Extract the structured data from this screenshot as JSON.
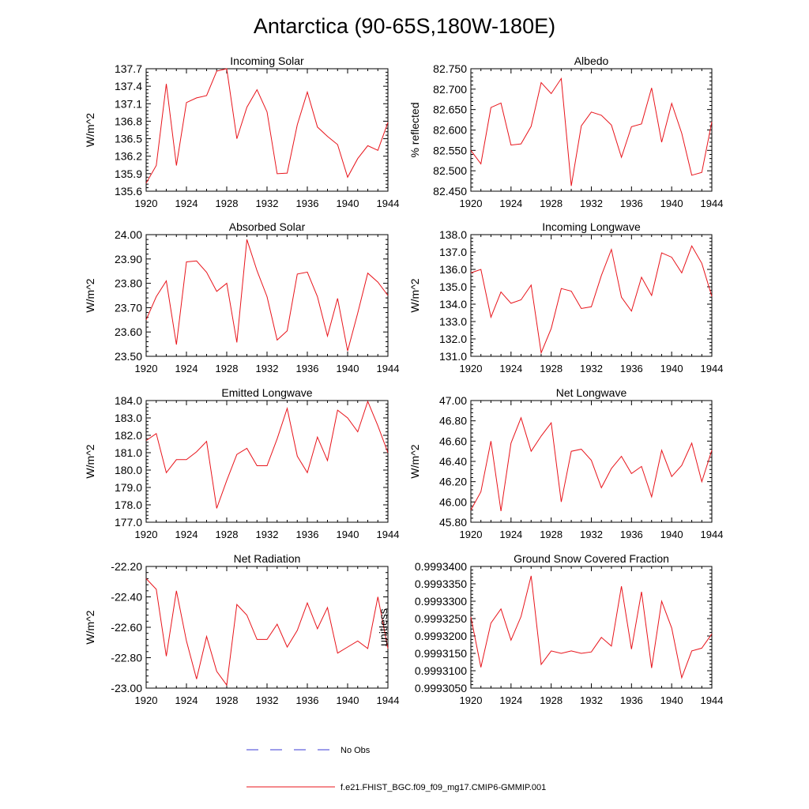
{
  "figure": {
    "title": "Antarctica (90-65S,180W-180E)",
    "legend": {
      "obs_label": "No Obs",
      "model_label": "f.e21.FHIST_BGC.f09_f09_mg17.CMIP6-GMMIP.001",
      "obs_color": "#3b3bd6",
      "model_color": "#e8141b"
    }
  },
  "chart_data": [
    {
      "type": "line",
      "title": "Incoming Solar",
      "ylabel": "W/m^2",
      "x": [
        1920,
        1921,
        1922,
        1923,
        1924,
        1925,
        1926,
        1927,
        1928,
        1929,
        1930,
        1931,
        1932,
        1933,
        1934,
        1935,
        1936,
        1937,
        1938,
        1939,
        1940,
        1941,
        1942,
        1943,
        1944
      ],
      "values": [
        135.74,
        136.04,
        137.44,
        136.04,
        137.12,
        137.2,
        137.24,
        137.66,
        137.7,
        136.5,
        137.04,
        137.34,
        136.96,
        135.9,
        135.91,
        136.74,
        137.3,
        136.7,
        136.54,
        136.4,
        135.84,
        136.16,
        136.38,
        136.3,
        136.78
      ],
      "xlim": [
        1920,
        1944
      ],
      "ylim": [
        135.6,
        137.7
      ],
      "xticks": [
        1920,
        1924,
        1928,
        1932,
        1936,
        1940,
        1944
      ],
      "xtick_labels": [
        "1920",
        "1924",
        "1928",
        "1932",
        "1936",
        "1940",
        "1944"
      ],
      "yticks": [
        135.6,
        135.9,
        136.2,
        136.5,
        136.8,
        137.1,
        137.4,
        137.7
      ],
      "ytick_labels": [
        "135.6",
        "135.9",
        "136.2",
        "136.5",
        "136.8",
        "137.1",
        "137.4",
        "137.7"
      ]
    },
    {
      "type": "line",
      "title": "Albedo",
      "ylabel": "% reflected",
      "x": [
        1920,
        1921,
        1922,
        1923,
        1924,
        1925,
        1926,
        1927,
        1928,
        1929,
        1930,
        1931,
        1932,
        1933,
        1934,
        1935,
        1936,
        1937,
        1938,
        1939,
        1940,
        1941,
        1942,
        1943,
        1944
      ],
      "values": [
        82.55,
        82.517,
        82.655,
        82.666,
        82.563,
        82.566,
        82.609,
        82.716,
        82.689,
        82.726,
        82.463,
        82.61,
        82.644,
        82.636,
        82.612,
        82.533,
        82.608,
        82.615,
        82.703,
        82.57,
        82.665,
        82.592,
        82.489,
        82.496,
        82.62
      ],
      "xlim": [
        1920,
        1944
      ],
      "ylim": [
        82.45,
        82.75
      ],
      "xticks": [
        1920,
        1924,
        1928,
        1932,
        1936,
        1940,
        1944
      ],
      "xtick_labels": [
        "1920",
        "1924",
        "1928",
        "1932",
        "1936",
        "1940",
        "1944"
      ],
      "yticks": [
        82.45,
        82.5,
        82.55,
        82.6,
        82.65,
        82.7,
        82.75
      ],
      "ytick_labels": [
        "82.450",
        "82.500",
        "82.550",
        "82.600",
        "82.650",
        "82.700",
        "82.750"
      ]
    },
    {
      "type": "line",
      "title": "Absorbed Solar",
      "ylabel": "W/m^2",
      "x": [
        1920,
        1921,
        1922,
        1923,
        1924,
        1925,
        1926,
        1927,
        1928,
        1929,
        1930,
        1931,
        1932,
        1933,
        1934,
        1935,
        1936,
        1937,
        1938,
        1939,
        1940,
        1941,
        1942,
        1943,
        1944
      ],
      "values": [
        23.65,
        23.745,
        23.81,
        23.548,
        23.888,
        23.892,
        23.845,
        23.767,
        23.8,
        23.557,
        23.98,
        23.852,
        23.745,
        23.567,
        23.605,
        23.838,
        23.846,
        23.745,
        23.583,
        23.738,
        23.522,
        23.678,
        23.842,
        23.805,
        23.75
      ],
      "xlim": [
        1920,
        1944
      ],
      "ylim": [
        23.5,
        24.0
      ],
      "xticks": [
        1920,
        1924,
        1928,
        1932,
        1936,
        1940,
        1944
      ],
      "xtick_labels": [
        "1920",
        "1924",
        "1928",
        "1932",
        "1936",
        "1940",
        "1944"
      ],
      "yticks": [
        23.5,
        23.6,
        23.7,
        23.8,
        23.9,
        24.0
      ],
      "ytick_labels": [
        "23.50",
        "23.60",
        "23.70",
        "23.80",
        "23.90",
        "24.00"
      ]
    },
    {
      "type": "line",
      "title": "Incoming Longwave",
      "ylabel": "W/m^2",
      "x": [
        1920,
        1921,
        1922,
        1923,
        1924,
        1925,
        1926,
        1927,
        1928,
        1929,
        1930,
        1931,
        1932,
        1933,
        1934,
        1935,
        1936,
        1937,
        1938,
        1939,
        1940,
        1941,
        1942,
        1943,
        1944
      ],
      "values": [
        135.8,
        136.0,
        133.25,
        134.7,
        134.05,
        134.25,
        135.1,
        131.2,
        132.6,
        134.9,
        134.75,
        133.75,
        133.85,
        135.65,
        137.15,
        134.4,
        133.6,
        135.55,
        134.5,
        136.95,
        136.7,
        135.8,
        137.35,
        136.35,
        134.45
      ],
      "xlim": [
        1920,
        1944
      ],
      "ylim": [
        131.0,
        138.0
      ],
      "xticks": [
        1920,
        1924,
        1928,
        1932,
        1936,
        1940,
        1944
      ],
      "xtick_labels": [
        "1920",
        "1924",
        "1928",
        "1932",
        "1936",
        "1940",
        "1944"
      ],
      "yticks": [
        131,
        132,
        133,
        134,
        135,
        136,
        137,
        138
      ],
      "ytick_labels": [
        "131.0",
        "132.0",
        "133.0",
        "134.0",
        "135.0",
        "136.0",
        "137.0",
        "138.0"
      ]
    },
    {
      "type": "line",
      "title": "Emitted Longwave",
      "ylabel": "W/m^2",
      "x": [
        1920,
        1921,
        1922,
        1923,
        1924,
        1925,
        1926,
        1927,
        1928,
        1929,
        1930,
        1931,
        1932,
        1933,
        1934,
        1935,
        1936,
        1937,
        1938,
        1939,
        1940,
        1941,
        1942,
        1943,
        1944
      ],
      "values": [
        181.7,
        182.1,
        179.85,
        180.6,
        180.6,
        181.05,
        181.65,
        177.8,
        179.4,
        180.9,
        181.25,
        180.25,
        180.25,
        181.8,
        183.55,
        180.8,
        179.85,
        181.9,
        180.55,
        183.45,
        183.0,
        182.2,
        183.95,
        182.55,
        181.0
      ],
      "xlim": [
        1920,
        1944
      ],
      "ylim": [
        177.0,
        184.0
      ],
      "xticks": [
        1920,
        1924,
        1928,
        1932,
        1936,
        1940,
        1944
      ],
      "xtick_labels": [
        "1920",
        "1924",
        "1928",
        "1932",
        "1936",
        "1940",
        "1944"
      ],
      "yticks": [
        177,
        178,
        179,
        180,
        181,
        182,
        183,
        184
      ],
      "ytick_labels": [
        "177.0",
        "178.0",
        "179.0",
        "180.0",
        "181.0",
        "182.0",
        "183.0",
        "184.0"
      ]
    },
    {
      "type": "line",
      "title": "Net Longwave",
      "ylabel": "W/m^2",
      "x": [
        1920,
        1921,
        1922,
        1923,
        1924,
        1925,
        1926,
        1927,
        1928,
        1929,
        1930,
        1931,
        1932,
        1933,
        1934,
        1935,
        1936,
        1937,
        1938,
        1939,
        1940,
        1941,
        1942,
        1943,
        1944
      ],
      "values": [
        45.92,
        46.1,
        46.6,
        45.91,
        46.58,
        46.83,
        46.5,
        46.65,
        46.78,
        46.0,
        46.5,
        46.52,
        46.41,
        46.14,
        46.33,
        46.45,
        46.28,
        46.35,
        46.05,
        46.51,
        46.25,
        46.36,
        46.58,
        46.2,
        46.51
      ],
      "xlim": [
        1920,
        1944
      ],
      "ylim": [
        45.8,
        47.0
      ],
      "xticks": [
        1920,
        1924,
        1928,
        1932,
        1936,
        1940,
        1944
      ],
      "xtick_labels": [
        "1920",
        "1924",
        "1928",
        "1932",
        "1936",
        "1940",
        "1944"
      ],
      "yticks": [
        45.8,
        46.0,
        46.2,
        46.4,
        46.6,
        46.8,
        47.0
      ],
      "ytick_labels": [
        "45.80",
        "46.00",
        "46.20",
        "46.40",
        "46.60",
        "46.80",
        "47.00"
      ]
    },
    {
      "type": "line",
      "title": "Net Radiation",
      "ylabel": "W/m^2",
      "x": [
        1920,
        1921,
        1922,
        1923,
        1924,
        1925,
        1926,
        1927,
        1928,
        1929,
        1930,
        1931,
        1932,
        1933,
        1934,
        1935,
        1936,
        1937,
        1938,
        1939,
        1940,
        1941,
        1942,
        1943,
        1944
      ],
      "values": [
        -22.28,
        -22.35,
        -22.79,
        -22.36,
        -22.69,
        -22.94,
        -22.66,
        -22.89,
        -22.98,
        -22.45,
        -22.52,
        -22.68,
        -22.68,
        -22.58,
        -22.73,
        -22.62,
        -22.44,
        -22.61,
        -22.47,
        -22.77,
        -22.73,
        -22.69,
        -22.74,
        -22.4,
        -22.74
      ],
      "xlim": [
        1920,
        1944
      ],
      "ylim": [
        -23.0,
        -22.2
      ],
      "xticks": [
        1920,
        1924,
        1928,
        1932,
        1936,
        1940,
        1944
      ],
      "xtick_labels": [
        "1920",
        "1924",
        "1928",
        "1932",
        "1936",
        "1940",
        "1944"
      ],
      "yticks": [
        -23.0,
        -22.8,
        -22.6,
        -22.4,
        -22.2
      ],
      "ytick_labels": [
        "-23.00",
        "-22.80",
        "-22.60",
        "-22.40",
        "-22.20"
      ]
    },
    {
      "type": "line",
      "title": "Ground Snow Covered Fraction",
      "ylabel": "unitless",
      "x": [
        1920,
        1921,
        1922,
        1923,
        1924,
        1925,
        1926,
        1927,
        1928,
        1929,
        1930,
        1931,
        1932,
        1933,
        1934,
        1935,
        1936,
        1937,
        1938,
        1939,
        1940,
        1941,
        1942,
        1943,
        1944
      ],
      "values": [
        0.9993255,
        0.999311,
        0.9993237,
        0.9993278,
        0.9993188,
        0.9993256,
        0.9993373,
        0.9993118,
        0.9993157,
        0.999315,
        0.9993157,
        0.999315,
        0.9993154,
        0.9993196,
        0.9993171,
        0.9993343,
        0.9993162,
        0.9993327,
        0.9993108,
        0.99933,
        0.9993223,
        0.999308,
        0.9993157,
        0.9993165,
        0.9993206
      ],
      "xlim": [
        1920,
        1944
      ],
      "ylim": [
        0.999305,
        0.99934
      ],
      "xticks": [
        1920,
        1924,
        1928,
        1932,
        1936,
        1940,
        1944
      ],
      "xtick_labels": [
        "1920",
        "1924",
        "1928",
        "1932",
        "1936",
        "1940",
        "1944"
      ],
      "yticks": [
        0.999305,
        0.99931,
        0.999315,
        0.99932,
        0.999325,
        0.99933,
        0.999335,
        0.99934
      ],
      "ytick_labels": [
        "0.9993050",
        "0.9993100",
        "0.9993150",
        "0.9993200",
        "0.9993250",
        "0.9993300",
        "0.9993350",
        "0.9993400"
      ]
    }
  ]
}
